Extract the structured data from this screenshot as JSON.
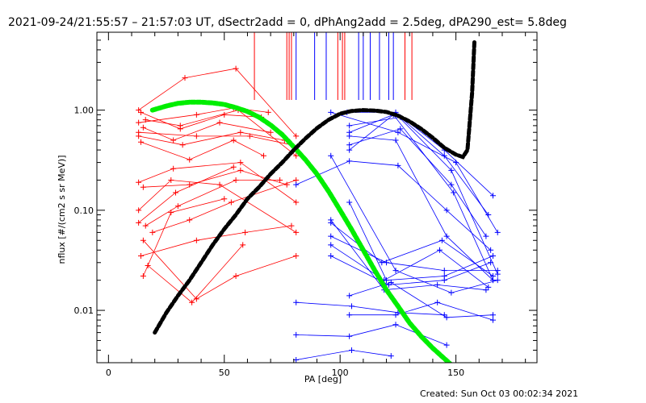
{
  "title": "2021-09-24/21:55:57 – 21:57:03 UT, dSectr2add = 0, dPhAng2add = 2.5deg, dPA290_est=  5.8deg",
  "footer": "Created: Sun Oct 03 00:02:34 2021",
  "chart_data": {
    "type": "line",
    "xlabel": "PA [deg]",
    "ylabel": "nflux [#/(cm2 s sr MeV)]",
    "xlim": [
      -5,
      185
    ],
    "ylim": [
      0.003,
      6.0
    ],
    "yscale": "log",
    "x_ticks": [
      0,
      50,
      100,
      150
    ],
    "x_tick_labels": [
      "0",
      "50",
      "100",
      "150"
    ],
    "y_ticks": [
      0.01,
      0.1,
      1.0
    ],
    "y_tick_labels": [
      "0.01",
      "0.10",
      "1.00"
    ],
    "colors": {
      "red": "#ff0000",
      "blue": "#0000ff",
      "green": "#00ee00",
      "black": "#000000"
    },
    "series": [
      {
        "color": "red",
        "marker": "plus",
        "x": [
          13,
          33,
          55,
          81
        ],
        "y": [
          1.0,
          2.1,
          2.6,
          0.55
        ]
      },
      {
        "color": "red",
        "marker": "plus",
        "x": [
          13,
          38,
          54,
          69
        ],
        "y": [
          0.75,
          0.9,
          1.05,
          0.95
        ]
      },
      {
        "color": "red",
        "marker": "plus",
        "x": [
          14,
          31,
          50,
          66
        ],
        "y": [
          0.95,
          0.65,
          0.9,
          0.85
        ]
      },
      {
        "color": "red",
        "marker": "plus",
        "x": [
          13,
          32,
          57,
          76
        ],
        "y": [
          0.55,
          0.45,
          0.6,
          0.5
        ]
      },
      {
        "color": "red",
        "marker": "plus",
        "x": [
          14,
          35,
          54,
          67
        ],
        "y": [
          0.48,
          0.32,
          0.5,
          0.35
        ]
      },
      {
        "color": "red",
        "marker": "plus",
        "x": [
          16,
          31,
          56,
          81
        ],
        "y": [
          0.8,
          0.7,
          1.0,
          0.35
        ]
      },
      {
        "color": "red",
        "marker": "plus",
        "x": [
          15,
          28,
          48,
          70
        ],
        "y": [
          0.67,
          0.5,
          0.75,
          0.6
        ]
      },
      {
        "color": "red",
        "marker": "plus",
        "x": [
          13,
          38,
          61,
          79
        ],
        "y": [
          0.6,
          0.55,
          0.55,
          0.45
        ]
      },
      {
        "color": "red",
        "marker": "plus",
        "x": [
          13,
          28,
          57,
          81
        ],
        "y": [
          0.19,
          0.26,
          0.3,
          0.12
        ]
      },
      {
        "color": "red",
        "marker": "plus",
        "x": [
          15,
          35,
          57,
          77
        ],
        "y": [
          0.17,
          0.18,
          0.25,
          0.18
        ]
      },
      {
        "color": "red",
        "marker": "plus",
        "x": [
          16,
          30,
          55,
          74
        ],
        "y": [
          0.07,
          0.11,
          0.2,
          0.2
        ]
      },
      {
        "color": "red",
        "marker": "plus",
        "x": [
          13,
          27,
          48,
          81
        ],
        "y": [
          0.1,
          0.2,
          0.18,
          0.06
        ]
      },
      {
        "color": "red",
        "marker": "plus",
        "x": [
          14,
          38,
          59,
          79
        ],
        "y": [
          0.035,
          0.05,
          0.06,
          0.07
        ]
      },
      {
        "color": "red",
        "marker": "plus",
        "x": [
          15,
          27,
          50
        ],
        "y": [
          0.022,
          0.095,
          0.13
        ]
      },
      {
        "color": "red",
        "marker": "plus",
        "x": [
          13,
          29,
          54
        ],
        "y": [
          0.075,
          0.15,
          0.27
        ]
      },
      {
        "color": "red",
        "marker": "plus",
        "x": [
          15,
          38,
          55,
          81
        ],
        "y": [
          0.05,
          0.013,
          0.022,
          0.035
        ]
      },
      {
        "color": "red",
        "marker": "plus",
        "x": [
          17,
          36,
          58
        ],
        "y": [
          0.028,
          0.012,
          0.045
        ]
      },
      {
        "color": "red",
        "marker": "plus",
        "x": [
          19,
          35,
          53,
          81
        ],
        "y": [
          0.06,
          0.08,
          0.12,
          0.2
        ]
      },
      {
        "color": "blue",
        "marker": "plus",
        "x": [
          81,
          104,
          125,
          146,
          165
        ],
        "y": [
          0.18,
          0.31,
          0.28,
          0.1,
          0.04
        ]
      },
      {
        "color": "blue",
        "marker": "plus",
        "x": [
          103,
          124,
          145,
          166
        ],
        "y": [
          0.95,
          0.95,
          0.4,
          0.14
        ]
      },
      {
        "color": "blue",
        "marker": "plus",
        "x": [
          104,
          124,
          148,
          168
        ],
        "y": [
          0.6,
          0.92,
          0.25,
          0.023
        ]
      },
      {
        "color": "blue",
        "marker": "plus",
        "x": [
          104,
          126,
          145,
          164
        ],
        "y": [
          0.7,
          0.85,
          0.35,
          0.09
        ]
      },
      {
        "color": "blue",
        "marker": "plus",
        "x": [
          104,
          123,
          149,
          166
        ],
        "y": [
          0.4,
          0.9,
          0.15,
          0.02
        ]
      },
      {
        "color": "blue",
        "marker": "plus",
        "x": [
          104,
          126,
          148,
          163
        ],
        "y": [
          0.45,
          0.65,
          0.18,
          0.055
        ]
      },
      {
        "color": "blue",
        "marker": "plus",
        "x": [
          96,
          125,
          150,
          168
        ],
        "y": [
          0.95,
          0.6,
          0.3,
          0.06
        ]
      },
      {
        "color": "blue",
        "marker": "plus",
        "x": [
          104,
          124,
          146,
          166
        ],
        "y": [
          0.55,
          0.5,
          0.055,
          0.02
        ]
      },
      {
        "color": "blue",
        "marker": "plus",
        "x": [
          96,
          119,
          143,
          164
        ],
        "y": [
          0.045,
          0.02,
          0.04,
          0.017
        ]
      },
      {
        "color": "blue",
        "marker": "plus",
        "x": [
          96,
          121,
          145,
          165
        ],
        "y": [
          0.035,
          0.018,
          0.02,
          0.03
        ]
      },
      {
        "color": "blue",
        "marker": "plus",
        "x": [
          96,
          120,
          145,
          168
        ],
        "y": [
          0.055,
          0.03,
          0.025,
          0.025
        ]
      },
      {
        "color": "blue",
        "marker": "plus",
        "x": [
          96,
          118,
          144,
          166
        ],
        "y": [
          0.075,
          0.03,
          0.05,
          0.022
        ]
      },
      {
        "color": "blue",
        "marker": "plus",
        "x": [
          96,
          119,
          142,
          163
        ],
        "y": [
          0.08,
          0.016,
          0.018,
          0.016
        ]
      },
      {
        "color": "blue",
        "marker": "plus",
        "x": [
          81,
          105,
          125,
          145
        ],
        "y": [
          0.012,
          0.011,
          0.0095,
          0.009
        ]
      },
      {
        "color": "blue",
        "marker": "plus",
        "x": [
          81,
          104,
          124,
          146
        ],
        "y": [
          0.0057,
          0.0055,
          0.0072,
          0.0045
        ]
      },
      {
        "color": "blue",
        "marker": "plus",
        "x": [
          104,
          122,
          146,
          166
        ],
        "y": [
          0.014,
          0.019,
          0.0085,
          0.009
        ]
      },
      {
        "color": "blue",
        "marker": "plus",
        "x": [
          104,
          124,
          142,
          166
        ],
        "y": [
          0.009,
          0.009,
          0.012,
          0.008
        ]
      },
      {
        "color": "blue",
        "marker": "plus",
        "x": [
          81,
          105,
          122
        ],
        "y": [
          0.0032,
          0.004,
          0.0035
        ]
      },
      {
        "color": "blue",
        "marker": "plus",
        "x": [
          96,
          124,
          148,
          168
        ],
        "y": [
          0.35,
          0.025,
          0.015,
          0.02
        ]
      },
      {
        "color": "blue",
        "marker": "plus",
        "x": [
          104,
          120,
          145,
          166
        ],
        "y": [
          0.12,
          0.02,
          0.022,
          0.035
        ]
      }
    ],
    "green_curve": {
      "color": "green",
      "x": [
        19,
        25,
        30,
        35,
        40,
        45,
        50,
        55,
        60,
        65,
        70,
        75,
        80,
        85,
        90,
        95,
        100,
        105,
        110,
        115,
        120,
        125,
        130,
        135,
        140,
        145,
        150
      ],
      "y": [
        1.0,
        1.1,
        1.17,
        1.2,
        1.2,
        1.18,
        1.14,
        1.06,
        0.97,
        0.85,
        0.71,
        0.57,
        0.43,
        0.32,
        0.23,
        0.155,
        0.1,
        0.064,
        0.04,
        0.025,
        0.016,
        0.011,
        0.0075,
        0.0055,
        0.0042,
        0.0033,
        0.0026
      ]
    },
    "black_curve": {
      "color": "black",
      "x": [
        20,
        25,
        30,
        35,
        40,
        45,
        50,
        55,
        60,
        65,
        70,
        75,
        80,
        85,
        90,
        95,
        100,
        105,
        110,
        115,
        120,
        125,
        130,
        135,
        140,
        145,
        150,
        153,
        155,
        157,
        158
      ],
      "y": [
        0.006,
        0.0095,
        0.014,
        0.02,
        0.03,
        0.045,
        0.065,
        0.09,
        0.13,
        0.17,
        0.23,
        0.3,
        0.4,
        0.52,
        0.66,
        0.8,
        0.92,
        0.98,
        1.0,
        0.99,
        0.96,
        0.88,
        0.77,
        0.65,
        0.53,
        0.42,
        0.36,
        0.34,
        0.4,
        1.5,
        5.0
      ]
    },
    "vertical_lines": [
      {
        "color": "red",
        "x": [
          63,
          77,
          78,
          79,
          99,
          101,
          102,
          128,
          131
        ]
      },
      {
        "color": "blue",
        "x": [
          81,
          89,
          94,
          108,
          110,
          113,
          117,
          121,
          123
        ]
      }
    ]
  }
}
